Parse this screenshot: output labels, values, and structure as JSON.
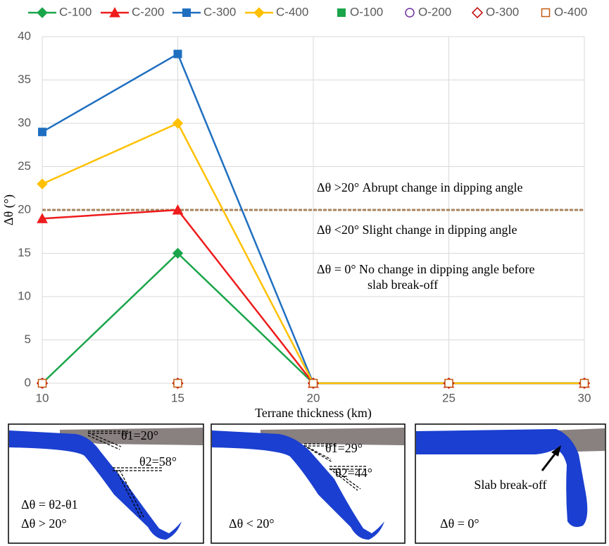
{
  "chart_data": {
    "type": "line",
    "xlabel": "Terrane thickness (km)",
    "ylabel": "Δθ (°)",
    "x": [
      10,
      15,
      20,
      25,
      30
    ],
    "xlim": [
      10,
      30
    ],
    "xticks": [
      10,
      15,
      20,
      25,
      30
    ],
    "ylim": [
      0,
      40
    ],
    "yticks": [
      0,
      5,
      10,
      15,
      20,
      25,
      30,
      35,
      40
    ],
    "grid": true,
    "legend": "top",
    "series": [
      {
        "name": "C-100",
        "color": "#1aa54a",
        "marker": "diamond",
        "filled": true,
        "line": true,
        "values": [
          0,
          15,
          0,
          0,
          0
        ]
      },
      {
        "name": "C-200",
        "color": "#ee1c1c",
        "marker": "triangle",
        "filled": true,
        "line": true,
        "values": [
          19,
          20,
          0,
          0,
          0
        ]
      },
      {
        "name": "C-300",
        "color": "#1f6fc0",
        "marker": "square",
        "filled": true,
        "line": true,
        "values": [
          29,
          38,
          0,
          0,
          0
        ]
      },
      {
        "name": "C-400",
        "color": "#ffc000",
        "marker": "diamond",
        "filled": true,
        "line": true,
        "values": [
          23,
          30,
          0,
          0,
          0
        ]
      },
      {
        "name": "O-100",
        "color": "#1aa54a",
        "marker": "square",
        "filled": true,
        "line": false,
        "values": [
          0,
          0,
          0,
          0,
          0
        ]
      },
      {
        "name": "O-200",
        "color": "#7030a0",
        "marker": "circle",
        "filled": false,
        "line": false,
        "values": [
          0,
          0,
          0,
          0,
          0
        ]
      },
      {
        "name": "O-300",
        "color": "#c00000",
        "marker": "diamond",
        "filled": false,
        "line": false,
        "values": [
          0,
          0,
          0,
          0,
          0
        ]
      },
      {
        "name": "O-400",
        "color": "#c55a11",
        "marker": "square",
        "filled": false,
        "line": false,
        "values": [
          0,
          0,
          0,
          0,
          0
        ]
      }
    ],
    "reference_line": {
      "value": 20,
      "color": "#a8845c"
    },
    "annotations": [
      "Δθ >20°  Abrupt change in dipping angle",
      "Δθ <20°  Slight change in dipping angle",
      "Δθ = 0°  No change in dipping angle before",
      "slab break-off"
    ]
  },
  "panels": [
    {
      "labels": [
        "θ1=20°",
        "θ2=58°",
        "Δθ = θ2-θ1",
        "Δθ > 20°"
      ]
    },
    {
      "labels": [
        "θ1=29°",
        "θ2=44°",
        "Δθ < 20°"
      ]
    },
    {
      "labels": [
        "Slab break-off",
        "Δθ = 0°"
      ]
    }
  ]
}
